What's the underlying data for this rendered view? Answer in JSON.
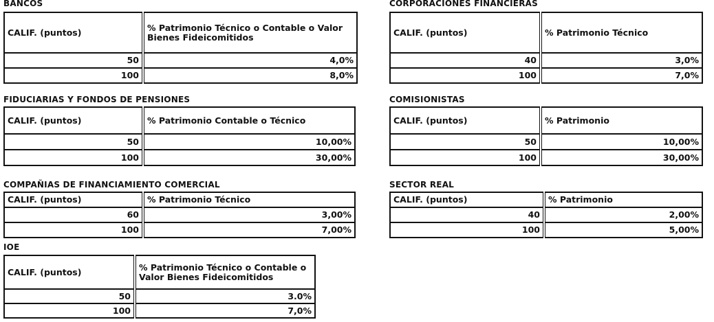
{
  "tables": [
    {
      "title": "BANCOS",
      "headers": [
        "CALIF. (puntos)",
        "% Patrimonio Técnico o Contable o Valor Bienes Fideicomitidos"
      ],
      "rows": [
        [
          "50",
          "4,0%"
        ],
        [
          "100",
          "8,0%"
        ]
      ]
    },
    {
      "title": "CORPORACIONES FINANCIERAS",
      "headers": [
        "CALIF. (puntos)",
        "% Patrimonio Técnico"
      ],
      "rows": [
        [
          "40",
          "3,0%"
        ],
        [
          "100",
          "7,0%"
        ]
      ]
    },
    {
      "title": "FIDUCIARIAS Y FONDOS DE PENSIONES",
      "headers": [
        "CALIF. (puntos)",
        "% Patrimonio Contable  o Técnico"
      ],
      "rows": [
        [
          "50",
          "10,00%"
        ],
        [
          "100",
          "30,00%"
        ]
      ]
    },
    {
      "title": "COMISIONISTAS",
      "headers": [
        "CALIF. (puntos)",
        "% Patrimonio"
      ],
      "rows": [
        [
          "50",
          "10,00%"
        ],
        [
          "100",
          "30,00%"
        ]
      ]
    },
    {
      "title": "COMPAÑIAS DE FINANCIAMIENTO COMERCIAL",
      "headers": [
        "CALIF. (puntos)",
        "% Patrimonio Técnico"
      ],
      "rows": [
        [
          "60",
          "3,00%"
        ],
        [
          "100",
          "7,00%"
        ]
      ]
    },
    {
      "title": "SECTOR REAL",
      "headers": [
        "CALIF. (puntos)",
        "% Patrimonio"
      ],
      "rows": [
        [
          "40",
          "2,00%"
        ],
        [
          "100",
          "5,00%"
        ]
      ]
    },
    {
      "title": "IOE",
      "headers": [
        "CALIF. (puntos)",
        "% Patrimonio Técnico o Contable o Valor Bienes Fideicomitidos"
      ],
      "rows": [
        [
          "50",
          "3.0%"
        ],
        [
          "100",
          "7,0%"
        ]
      ]
    }
  ]
}
